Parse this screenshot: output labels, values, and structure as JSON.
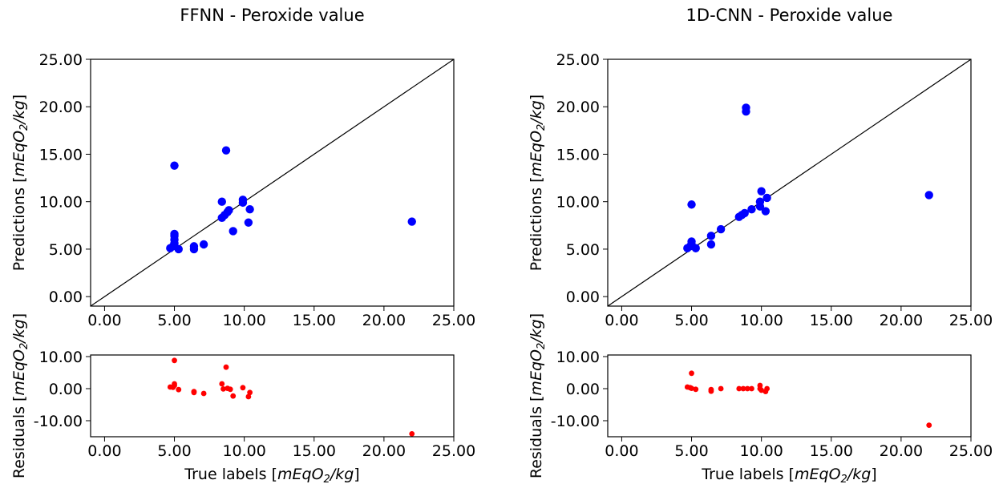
{
  "chart_data": [
    {
      "type": "scatter",
      "title": "FFNN - Peroxide value",
      "role": "predictions",
      "ylabel": "Predictions [mEqO2/kg]",
      "xlim": [
        -1,
        25
      ],
      "ylim": [
        -1,
        25
      ],
      "xticks": [
        "0.00",
        "5.00",
        "10.00",
        "15.00",
        "20.00",
        "25.00"
      ],
      "yticks": [
        "0.00",
        "5.00",
        "10.00",
        "15.00",
        "20.00",
        "25.00"
      ],
      "identity_line": true,
      "color": "#0000ff",
      "points": [
        [
          4.7,
          5.1
        ],
        [
          4.9,
          5.3
        ],
        [
          5.0,
          5.6
        ],
        [
          5.0,
          6.0
        ],
        [
          5.0,
          6.4
        ],
        [
          5.0,
          6.6
        ],
        [
          5.0,
          13.8
        ],
        [
          5.3,
          5.0
        ],
        [
          6.4,
          5.0
        ],
        [
          6.4,
          5.3
        ],
        [
          7.1,
          5.5
        ],
        [
          8.4,
          8.3
        ],
        [
          8.4,
          10.0
        ],
        [
          8.6,
          8.6
        ],
        [
          8.7,
          15.4
        ],
        [
          8.8,
          8.9
        ],
        [
          8.9,
          9.1
        ],
        [
          9.2,
          6.9
        ],
        [
          9.9,
          9.9
        ],
        [
          9.9,
          10.2
        ],
        [
          10.3,
          7.8
        ],
        [
          10.4,
          9.2
        ],
        [
          22.0,
          7.9
        ]
      ]
    },
    {
      "type": "scatter",
      "role": "residuals",
      "xlabel": "True labels [mEqO2/kg]",
      "ylabel": "Residuals [mEqO2/kg]",
      "xlim": [
        -1,
        25
      ],
      "ylim": [
        -15,
        10.5
      ],
      "xticks": [
        "0.00",
        "5.00",
        "10.00",
        "15.00",
        "20.00",
        "25.00"
      ],
      "yticks": [
        "10.00",
        "0.00",
        "-10.00"
      ],
      "color": "#ff0000",
      "points": [
        [
          4.7,
          0.5
        ],
        [
          4.9,
          0.4
        ],
        [
          5.0,
          1.0
        ],
        [
          5.0,
          1.5
        ],
        [
          5.0,
          8.8
        ],
        [
          5.3,
          -0.3
        ],
        [
          6.4,
          -1.2
        ],
        [
          6.4,
          -0.9
        ],
        [
          7.1,
          -1.5
        ],
        [
          8.4,
          1.5
        ],
        [
          8.5,
          -0.1
        ],
        [
          8.7,
          6.7
        ],
        [
          8.8,
          0.1
        ],
        [
          9.0,
          -0.2
        ],
        [
          9.2,
          -2.3
        ],
        [
          9.9,
          0.3
        ],
        [
          10.3,
          -2.5
        ],
        [
          10.4,
          -1.2
        ],
        [
          22.0,
          -14.1
        ]
      ]
    },
    {
      "type": "scatter",
      "title": "1D-CNN - Peroxide value",
      "role": "predictions",
      "ylabel": "Predictions [mEqO2/kg]",
      "xlim": [
        -1,
        25
      ],
      "ylim": [
        -1,
        25
      ],
      "xticks": [
        "0.00",
        "5.00",
        "10.00",
        "15.00",
        "20.00",
        "25.00"
      ],
      "yticks": [
        "0.00",
        "5.00",
        "10.00",
        "15.00",
        "20.00",
        "25.00"
      ],
      "identity_line": true,
      "color": "#0000ff",
      "points": [
        [
          4.7,
          5.1
        ],
        [
          4.9,
          5.3
        ],
        [
          5.0,
          5.5
        ],
        [
          5.0,
          5.8
        ],
        [
          5.0,
          9.7
        ],
        [
          5.3,
          5.1
        ],
        [
          6.4,
          5.5
        ],
        [
          6.4,
          6.4
        ],
        [
          7.1,
          7.1
        ],
        [
          8.4,
          8.4
        ],
        [
          8.6,
          8.6
        ],
        [
          8.8,
          8.8
        ],
        [
          8.9,
          19.5
        ],
        [
          8.9,
          19.9
        ],
        [
          9.3,
          9.2
        ],
        [
          9.9,
          9.5
        ],
        [
          9.9,
          10.0
        ],
        [
          10.0,
          11.1
        ],
        [
          10.3,
          9.0
        ],
        [
          10.4,
          10.4
        ],
        [
          22.0,
          10.7
        ]
      ]
    },
    {
      "type": "scatter",
      "role": "residuals",
      "xlabel": "True labels [mEqO2/kg]",
      "ylabel": "Residuals [mEqO2/kg]",
      "xlim": [
        -1,
        25
      ],
      "ylim": [
        -15,
        10.5
      ],
      "xticks": [
        "0.00",
        "5.00",
        "10.00",
        "15.00",
        "20.00",
        "25.00"
      ],
      "yticks": [
        "10.00",
        "0.00",
        "-10.00"
      ],
      "color": "#ff0000",
      "points": [
        [
          4.7,
          0.5
        ],
        [
          4.9,
          0.3
        ],
        [
          5.0,
          4.8
        ],
        [
          5.0,
          0.1
        ],
        [
          5.3,
          -0.2
        ],
        [
          6.4,
          -0.8
        ],
        [
          6.4,
          -0.3
        ],
        [
          7.1,
          0.0
        ],
        [
          8.4,
          0.0
        ],
        [
          8.7,
          0.0
        ],
        [
          9.0,
          0.0
        ],
        [
          9.3,
          0.0
        ],
        [
          9.9,
          0.0
        ],
        [
          9.9,
          1.0
        ],
        [
          10.0,
          -0.5
        ],
        [
          10.3,
          -0.9
        ],
        [
          10.4,
          0.0
        ],
        [
          22.0,
          -11.4
        ]
      ]
    }
  ]
}
